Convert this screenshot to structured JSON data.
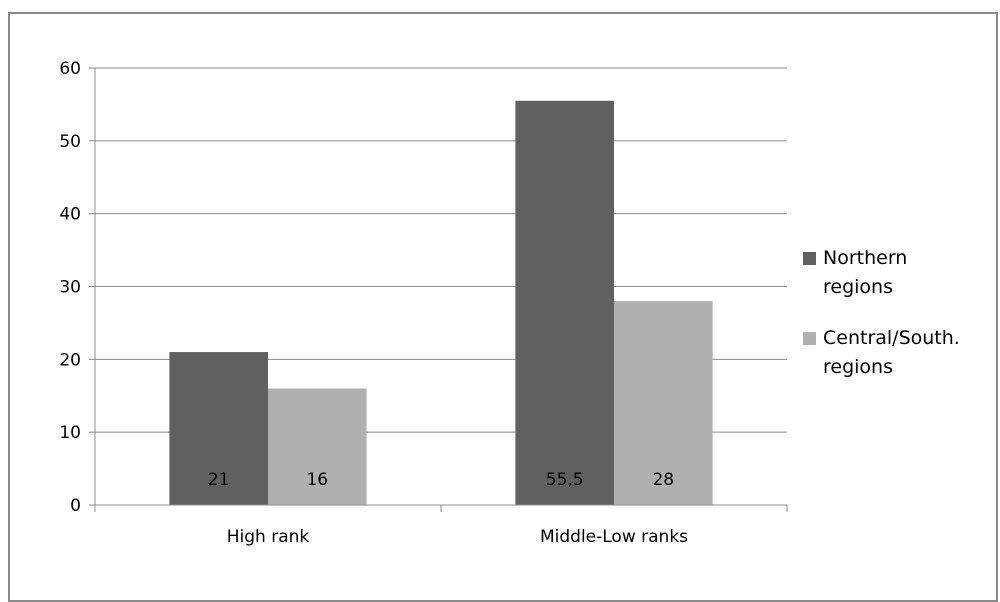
{
  "chart_data": {
    "type": "bar",
    "title": "",
    "xlabel": "",
    "ylabel": "",
    "categories": [
      "High rank",
      "Middle-Low ranks"
    ],
    "series": [
      {
        "name": "Northern regions",
        "values": [
          21,
          55.5
        ],
        "labels": [
          "21",
          "55,5"
        ],
        "color": "#606060"
      },
      {
        "name": "Central/South. regions",
        "values": [
          16,
          28
        ],
        "labels": [
          "16",
          "28"
        ],
        "color": "#b0b0b0"
      }
    ],
    "ylim": [
      0,
      60
    ],
    "yticks": [
      "0",
      "10",
      "20",
      "30",
      "40",
      "50",
      "60"
    ],
    "grid": true,
    "legend_position": "right"
  }
}
